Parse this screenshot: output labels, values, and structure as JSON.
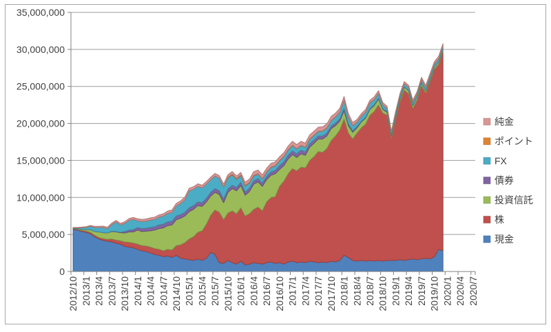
{
  "chart_data": {
    "type": "area",
    "stacked": true,
    "title": "",
    "unit": "JPY; series values stored in millions (multiply by value_multiplier for axis units)",
    "value_multiplier": 1000000,
    "start_month": "2012/10",
    "end_month": "2019/12",
    "grid": true,
    "legend_position": "right",
    "ylim": [
      0,
      35000000
    ],
    "y_tick_step": 5000000,
    "y_tick_labels": [
      "0",
      "5,000,000",
      "10,000,000",
      "15,000,000",
      "20,000,000",
      "25,000,000",
      "30,000,000",
      "35,000,000"
    ],
    "x_tick_interval_months": 3,
    "x_tick_labels": [
      "2012/10",
      "2013/1",
      "2013/4",
      "2013/7",
      "2013/10",
      "2014/1",
      "2014/4",
      "2014/7",
      "2014/10",
      "2015/1",
      "2015/4",
      "2015/7",
      "2015/10",
      "2016/1",
      "2016/4",
      "2016/7",
      "2016/10",
      "2017/1",
      "2017/4",
      "2017/7",
      "2017/10",
      "2018/1",
      "2018/4",
      "2018/7",
      "2018/10",
      "2019/1",
      "2019/4",
      "2019/7",
      "2019/10",
      "2020/1",
      "2020/4",
      "2020/7"
    ],
    "legend_order_top_to_bottom": [
      "純金",
      "ポイント",
      "FX",
      "債券",
      "投資信託",
      "株",
      "現金"
    ],
    "series": [
      {
        "name": "現金",
        "key": "cash",
        "color": "#4F81BD",
        "values": [
          5.7,
          5.6,
          5.4,
          5.3,
          5.1,
          4.7,
          4.4,
          4.2,
          4.1,
          4.0,
          3.8,
          3.7,
          3.4,
          3.3,
          3.2,
          3.0,
          2.8,
          2.7,
          2.5,
          2.3,
          2.2,
          2.0,
          2.1,
          1.9,
          2.2,
          1.8,
          1.7,
          1.6,
          1.5,
          1.7,
          1.5,
          1.8,
          2.6,
          2.3,
          1.2,
          1.1,
          1.5,
          1.2,
          1.0,
          1.4,
          0.9,
          1.0,
          1.2,
          1.1,
          1.0,
          1.2,
          1.3,
          1.1,
          1.2,
          1.0,
          1.3,
          1.4,
          1.2,
          1.3,
          1.2,
          1.4,
          1.3,
          1.2,
          1.3,
          1.2,
          1.4,
          1.3,
          1.5,
          2.2,
          1.9,
          1.5,
          1.4,
          1.5,
          1.4,
          1.5,
          1.4,
          1.5,
          1.4,
          1.5,
          1.5,
          1.5,
          1.6,
          1.5,
          1.6,
          1.7,
          1.6,
          1.7,
          1.8,
          1.7,
          2.0,
          3.0,
          2.8
        ]
      },
      {
        "name": "株",
        "key": "stocks",
        "color": "#C0504D",
        "values": [
          0.1,
          0.1,
          0.15,
          0.15,
          0.2,
          0.2,
          0.2,
          0.25,
          0.25,
          0.4,
          0.45,
          0.45,
          0.6,
          0.65,
          0.65,
          0.7,
          0.7,
          0.75,
          0.8,
          0.8,
          0.8,
          0.8,
          0.9,
          1.0,
          1.3,
          1.8,
          2.2,
          2.8,
          3.2,
          3.6,
          4.0,
          4.6,
          5.0,
          6.0,
          6.8,
          5.9,
          6.4,
          7.0,
          6.8,
          7.2,
          6.6,
          6.8,
          7.2,
          7.6,
          7.2,
          8.2,
          8.7,
          9.0,
          10.3,
          11.2,
          11.9,
          12.5,
          12.4,
          12.8,
          12.8,
          13.6,
          14.2,
          15.0,
          14.8,
          15.4,
          16.3,
          17.0,
          17.6,
          18.4,
          16.8,
          16.4,
          17.3,
          17.9,
          18.5,
          19.6,
          20.2,
          21.0,
          20.0,
          19.6,
          16.5,
          19.0,
          21.3,
          23.0,
          22.4,
          20.3,
          21.6,
          23.4,
          22.3,
          24.0,
          25.3,
          25.0,
          26.9
        ]
      },
      {
        "name": "投資信託",
        "key": "mutual-funds",
        "color": "#9BBB59",
        "values": [
          0.05,
          0.1,
          0.15,
          0.2,
          0.35,
          0.5,
          0.75,
          0.8,
          0.85,
          1.0,
          1.1,
          1.1,
          1.2,
          1.4,
          1.5,
          1.9,
          1.9,
          2.0,
          2.2,
          2.5,
          2.8,
          3.1,
          3.2,
          3.4,
          3.5,
          3.6,
          3.6,
          3.7,
          3.7,
          3.6,
          3.3,
          3.0,
          2.6,
          2.4,
          2.4,
          2.3,
          2.8,
          3.0,
          3.1,
          3.0,
          2.8,
          3.0,
          3.4,
          3.4,
          3.3,
          3.0,
          3.0,
          3.1,
          2.3,
          2.1,
          2.0,
          1.9,
          1.8,
          1.8,
          1.7,
          1.8,
          1.8,
          1.7,
          1.8,
          1.7,
          1.6,
          1.4,
          1.2,
          1.1,
          1.0,
          0.9,
          0.7,
          0.8,
          0.8,
          0.8,
          0.8,
          0.8,
          0.5,
          0.4,
          0.3,
          0.4,
          0.4,
          0.4,
          0.4,
          0.4,
          0.4,
          0.4,
          0.3,
          0.3,
          0.3,
          0.3,
          0.3
        ]
      },
      {
        "name": "債券",
        "key": "bonds",
        "color": "#8064A2",
        "values": [
          0,
          0,
          0,
          0,
          0,
          0,
          0,
          0,
          0,
          0.05,
          0.05,
          0.05,
          0.2,
          0.25,
          0.3,
          0.35,
          0.4,
          0.4,
          0.45,
          0.45,
          0.5,
          0.5,
          0.5,
          0.5,
          0.5,
          0.5,
          0.5,
          0.5,
          0.5,
          0.5,
          0.5,
          0.5,
          0.5,
          0.5,
          0.5,
          0.5,
          0.45,
          0.45,
          0.45,
          0.45,
          0.45,
          0.45,
          0.45,
          0.45,
          0.45,
          0.45,
          0.45,
          0.45,
          0.5,
          0.5,
          0.5,
          0.5,
          0.5,
          0.5,
          0.45,
          0.45,
          0.45,
          0.4,
          0.4,
          0.4,
          0.35,
          0.35,
          0.3,
          0.3,
          0.25,
          0.2,
          0.15,
          0.1,
          0.1,
          0.1,
          0.1,
          0.1,
          0.1,
          0.1,
          0.1,
          0.05,
          0.05,
          0.05,
          0.05,
          0.05,
          0,
          0,
          0,
          0,
          0,
          0,
          0
        ]
      },
      {
        "name": "FX",
        "key": "fx",
        "color": "#4BACC6",
        "values": [
          0.05,
          0.1,
          0.2,
          0.3,
          0.45,
          0.55,
          0.6,
          0.7,
          0.6,
          0.9,
          1.3,
          1.0,
          1.1,
          1.3,
          1.4,
          0.9,
          0.95,
          0.95,
          1.0,
          1.0,
          1.05,
          1.1,
          1.15,
          1.2,
          1.35,
          1.5,
          1.7,
          2.3,
          2.2,
          2.1,
          2.0,
          1.9,
          1.7,
          1.7,
          1.7,
          1.6,
          1.5,
          1.4,
          1.1,
          0.9,
          0.8,
          0.7,
          0.65,
          0.6,
          0.55,
          0.55,
          0.6,
          0.6,
          0.65,
          0.7,
          0.7,
          0.7,
          0.65,
          0.6,
          0.6,
          0.6,
          0.6,
          0.6,
          0.65,
          0.65,
          0.7,
          0.8,
          0.9,
          1.1,
          0.9,
          0.7,
          0.6,
          0.65,
          0.7,
          0.75,
          0.7,
          0.65,
          0.5,
          0.4,
          0.3,
          0.4,
          0.4,
          0.4,
          0.4,
          0.4,
          0.4,
          0.4,
          0.4,
          0.4,
          0.4,
          0.4,
          0.4
        ]
      },
      {
        "name": "ポイント",
        "key": "points",
        "color": "#DD8433",
        "values": [
          0,
          0,
          0,
          0,
          0,
          0,
          0,
          0,
          0,
          0,
          0,
          0,
          0,
          0,
          0,
          0,
          0,
          0,
          0,
          0,
          0,
          0,
          0,
          0,
          0,
          0,
          0,
          0,
          0,
          0,
          0,
          0,
          0,
          0,
          0,
          0.05,
          0.08,
          0.1,
          0.1,
          0.08,
          0.1,
          0.08,
          0.08,
          0.06,
          0.05,
          0.05,
          0.05,
          0.05,
          0.05,
          0.05,
          0.05,
          0.04,
          0.04,
          0.04,
          0.04,
          0.04,
          0.04,
          0.04,
          0.04,
          0.04,
          0.04,
          0.04,
          0.03,
          0.03,
          0.03,
          0.03,
          0.03,
          0.03,
          0.03,
          0.03,
          0.03,
          0.03,
          0.03,
          0.03,
          0.03,
          0.03,
          0.03,
          0.03,
          0.03,
          0.03,
          0.03,
          0.03,
          0.03,
          0.03,
          0.03,
          0.03,
          0.03
        ]
      },
      {
        "name": "純金",
        "key": "gold",
        "color": "#D99694",
        "values": [
          0.05,
          0.05,
          0.1,
          0.1,
          0.12,
          0.15,
          0.15,
          0.18,
          0.18,
          0.2,
          0.2,
          0.2,
          0.22,
          0.25,
          0.25,
          0.28,
          0.28,
          0.3,
          0.3,
          0.3,
          0.3,
          0.3,
          0.32,
          0.32,
          0.35,
          0.35,
          0.35,
          0.35,
          0.35,
          0.35,
          0.35,
          0.35,
          0.35,
          0.35,
          0.35,
          0.35,
          0.35,
          0.35,
          0.35,
          0.35,
          0.4,
          0.45,
          0.5,
          0.5,
          0.5,
          0.5,
          0.5,
          0.5,
          0.5,
          0.5,
          0.5,
          0.55,
          0.55,
          0.55,
          0.55,
          0.55,
          0.55,
          0.55,
          0.55,
          0.55,
          0.55,
          0.5,
          0.5,
          0.5,
          0.45,
          0.4,
          0.35,
          0.35,
          0.35,
          0.35,
          0.35,
          0.35,
          0.3,
          0.3,
          0.25,
          0.25,
          0.25,
          0.28,
          0.28,
          0.28,
          0.3,
          0.3,
          0.3,
          0.32,
          0.32,
          0.35,
          0.35
        ]
      }
    ]
  },
  "style_colors": {
    "background": "#FFFFFF",
    "gridline": "#9C9C9C",
    "axis_line": "#808080",
    "tick": "#808080",
    "axis_text": "#404040",
    "outer_border": "#A6A6A6"
  }
}
